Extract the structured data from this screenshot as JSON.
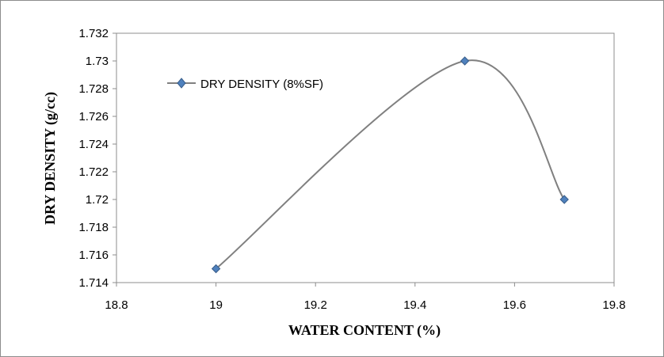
{
  "chart_data": {
    "type": "line",
    "smooth": true,
    "xlabel": "WATER CONTENT (%)",
    "ylabel": "DRY DENSITY (g/cc)",
    "xlim": [
      18.8,
      19.8
    ],
    "ylim": [
      1.714,
      1.732
    ],
    "x_ticks": [
      "18.8",
      "19",
      "19.2",
      "19.4",
      "19.6",
      "19.8"
    ],
    "y_ticks": [
      "1.714",
      "1.716",
      "1.718",
      "1.72",
      "1.722",
      "1.724",
      "1.726",
      "1.728",
      "1.73",
      "1.732"
    ],
    "grid": false,
    "legend_position": "top-left",
    "series": [
      {
        "name": "DRY DENSITY (8%SF)",
        "color": "#808080",
        "marker_color": "#4f81bd",
        "marker": "diamond",
        "x": [
          19,
          19.5,
          19.7
        ],
        "y": [
          1.715,
          1.73,
          1.72
        ]
      }
    ]
  }
}
